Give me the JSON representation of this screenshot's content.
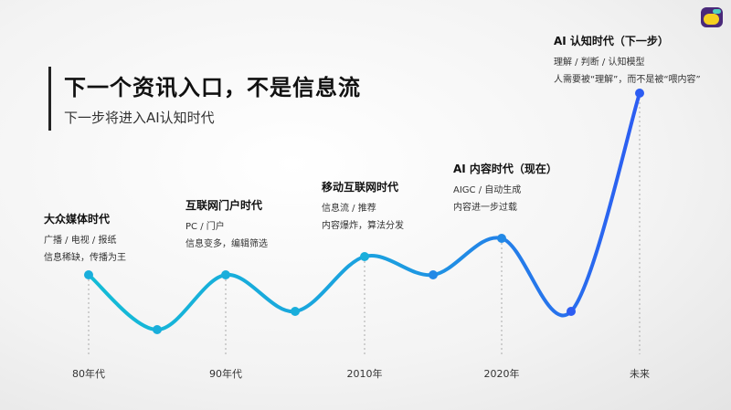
{
  "header": {
    "title": "下一个资讯入口，不是信息流",
    "subtitle": "下一步将进入AI认知时代"
  },
  "colors": {
    "curve_start": "#14bcd6",
    "curve_end": "#2c5cf2"
  },
  "logo": {
    "icon": "app-logo-icon"
  },
  "eras": [
    {
      "title": "大众媒体时代",
      "lines": [
        "广播 / 电视 / 报纸",
        "信息稀缺，传播为王"
      ]
    },
    {
      "title": "互联网门户时代",
      "lines": [
        "PC / 门户",
        "信息变多，编辑筛选"
      ]
    },
    {
      "title": "移动互联网时代",
      "lines": [
        "信息流 / 推荐",
        "内容爆炸，算法分发"
      ]
    },
    {
      "title": "AI 内容时代（现在）",
      "lines": [
        "AIGC / 自动生成",
        "内容进一步过载"
      ]
    },
    {
      "title": "AI 认知时代（下一步）",
      "lines": [
        "理解 / 判断 / 认知模型",
        "人需要被“理解”，而不是被“喂内容”"
      ]
    }
  ],
  "axis_labels": [
    "80年代",
    "90年代",
    "2010年",
    "2020年",
    "未来"
  ]
}
